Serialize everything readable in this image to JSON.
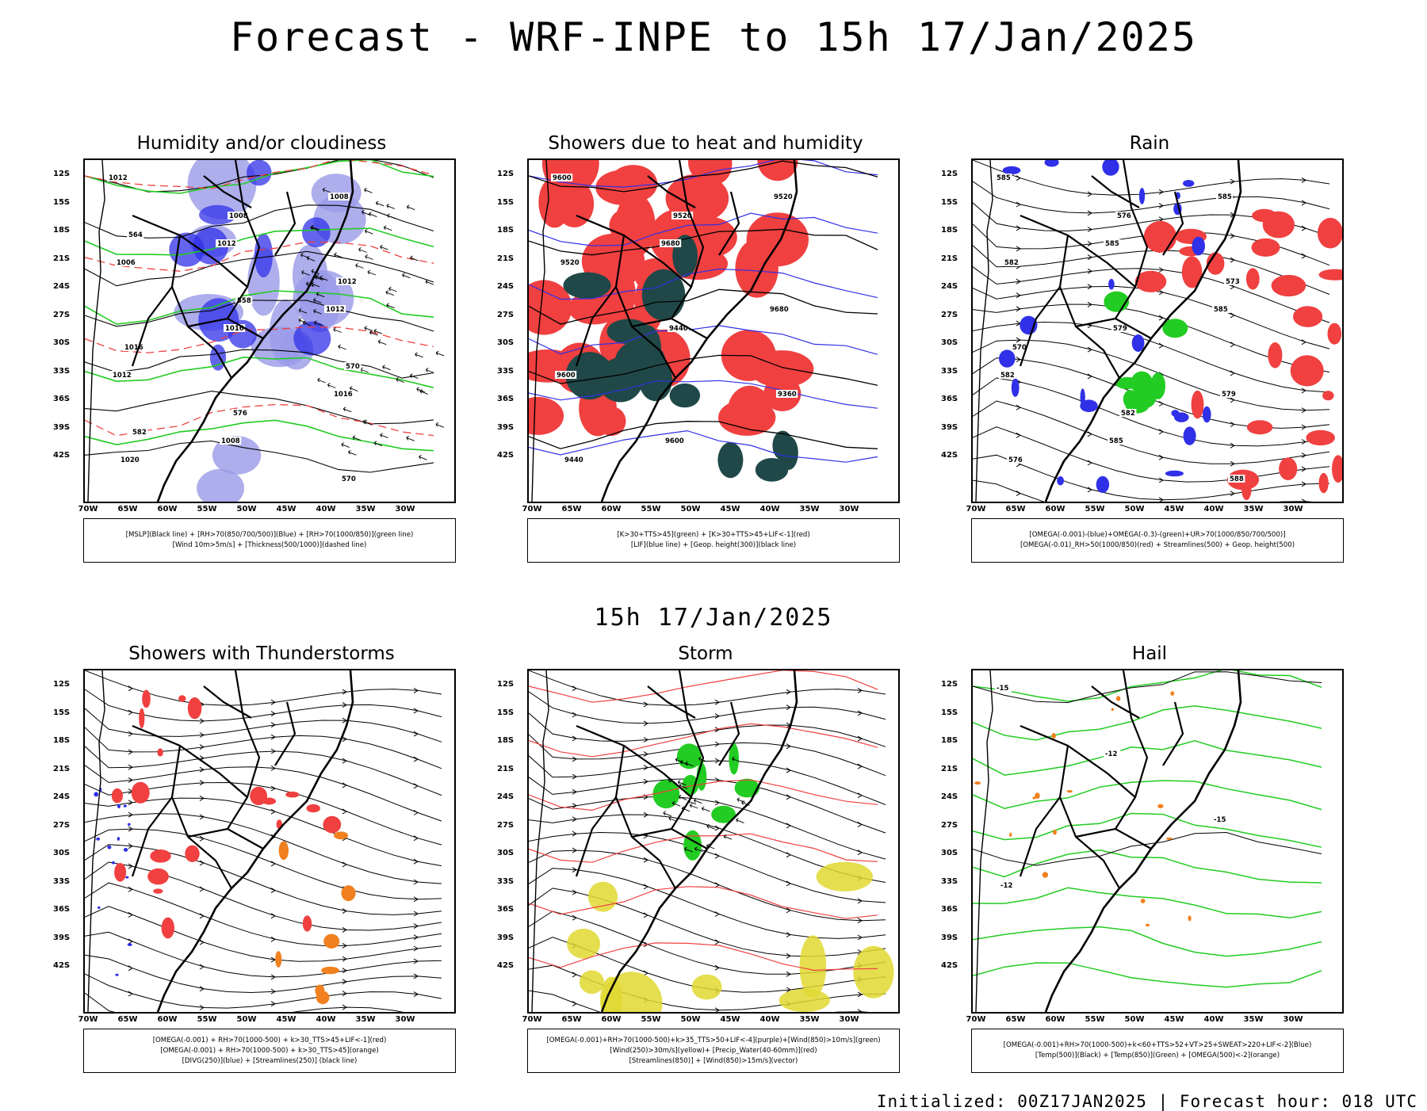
{
  "title": "Forecast - WRF-INPE to 15h 17/Jan/2025",
  "subtitle": "15h 17/Jan/2025",
  "footer": "Initialized: 00Z17JAN2025 | Forecast hour: 018 UTC",
  "lat_labels": [
    "12S",
    "15S",
    "18S",
    "21S",
    "24S",
    "27S",
    "30S",
    "33S",
    "36S",
    "39S",
    "42S"
  ],
  "lon_labels": [
    "70W",
    "65W",
    "60W",
    "55W",
    "50W",
    "45W",
    "40W",
    "35W",
    "30W"
  ],
  "colors": {
    "red": "#f04040",
    "blue": "#3030e8",
    "green": "#22cc22",
    "lavender": "#9a9ae8",
    "dark_teal": "#204848",
    "yellow": "#e0d830",
    "orange": "#f08020"
  },
  "panels": [
    {
      "title": "Humidity and/or cloudiness",
      "legend": [
        "[MSLP](Black line) + [RH>70(850/700/500)](Blue) + [RH>70(1000/850)](green line)",
        "[Wind 10m>5m/s] + [Thickness(500/1000)](dashed line)"
      ],
      "contour_labels": [
        "1012",
        "1012",
        "1012",
        "1012",
        "1008",
        "1008",
        "1006",
        "1016",
        "1016",
        "1020",
        "1008",
        "1012",
        "1016",
        "576",
        "570",
        "564",
        "558",
        "570",
        "582"
      ]
    },
    {
      "title": "Showers due to heat and humidity",
      "legend": [
        "[K>30+TTS>45](green) + [K>30+TTS>45+LIF<-1](red)",
        "[LIF](blue line) + [Geop. height(300)](black line)"
      ],
      "contour_labels": [
        "9600",
        "9680",
        "9680",
        "9600",
        "9600",
        "9520",
        "9520",
        "9440",
        "9360",
        "9440",
        "9520"
      ]
    },
    {
      "title": "Rain",
      "legend": [
        "[OMEGA(-0.001)-(blue)+OMEGA(-0.3)-(green)+UR>70(1000/850/700/500)]",
        "[OMEGA(-0.01)_RH>50(1000/850)(red) + Streamlines(500) + Geop. height(500)"
      ],
      "contour_labels": [
        "585",
        "585",
        "585",
        "582",
        "585",
        "585",
        "582",
        "579",
        "579",
        "576",
        "576",
        "573",
        "570",
        "582",
        "588"
      ]
    },
    {
      "title": "Showers with Thunderstorms",
      "legend": [
        "[OMEGA(-0.001) + RH>70(1000-500) + k>30_TTS>45+LIF<-1](red)",
        "[OMEGA(-0.001) + RH>70(1000-500) + k>30_TTS>45](orange)",
        "[DIVG(250)](blue) + [Streamlines(250)] (black line)"
      ],
      "contour_labels": []
    },
    {
      "title": "Storm",
      "legend": [
        "[OMEGA(-0.001)+RH>70(1000-500)+k>35_TTS>50+LIF<-4](purple)+[Wind(850)>10m/s](green)",
        "[Wind(250)>30m/s](yellow)+ [Precip_Water(40-60mm)](red)",
        "[Streamlines(850)] + [Wind(850)>15m/s](vector)"
      ],
      "contour_labels": []
    },
    {
      "title": "Hail",
      "legend": [
        "[OMEGA(-0.001)+RH>70(1000-500)+k<60+TTS>52+VT>25+SWEAT>220+LIF<-2](Blue)",
        "[Temp(500)](Black) + [Temp(850)](Green) + [OMEGA(500)<-2](orange)"
      ],
      "contour_labels": [
        "-15",
        "-12",
        "-15",
        "-12"
      ]
    }
  ]
}
